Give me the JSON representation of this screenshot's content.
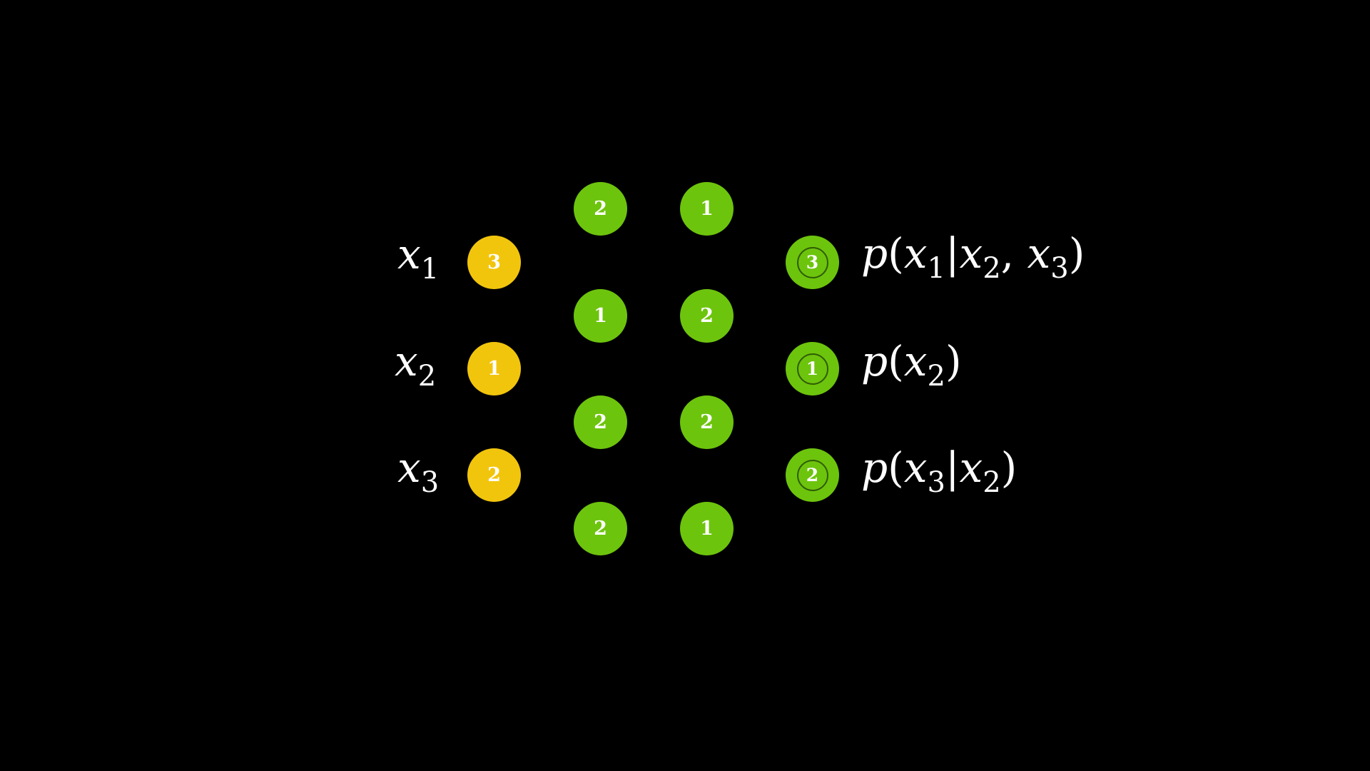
{
  "colors": {
    "background": "#000000",
    "variable_node": "#f2c50d",
    "sample_node": "#6dc40d",
    "result_ring": "#2f5c04",
    "text": "#ffffff"
  },
  "variables": [
    {
      "symbol": "x",
      "index": "1",
      "value": "3"
    },
    {
      "symbol": "x",
      "index": "2",
      "value": "1"
    },
    {
      "symbol": "x",
      "index": "3",
      "value": "2"
    }
  ],
  "samples": {
    "column_a": [
      "2",
      "1",
      "2",
      "2"
    ],
    "column_b": [
      "1",
      "2",
      "2",
      "1"
    ]
  },
  "results": [
    {
      "value": "3",
      "p": "p",
      "open": "(",
      "target_sym": "x",
      "target_idx": "1",
      "bar": "|",
      "cond1_sym": "x",
      "cond1_idx": "2",
      "comma": ", ",
      "cond2_sym": "x",
      "cond2_idx": "3",
      "close": ")"
    },
    {
      "value": "1",
      "p": "p",
      "open": "(",
      "target_sym": "x",
      "target_idx": "2",
      "close": ")"
    },
    {
      "value": "2",
      "p": "p",
      "open": "(",
      "target_sym": "x",
      "target_idx": "3",
      "bar": "|",
      "cond1_sym": "x",
      "cond1_idx": "2",
      "close": ")"
    }
  ]
}
